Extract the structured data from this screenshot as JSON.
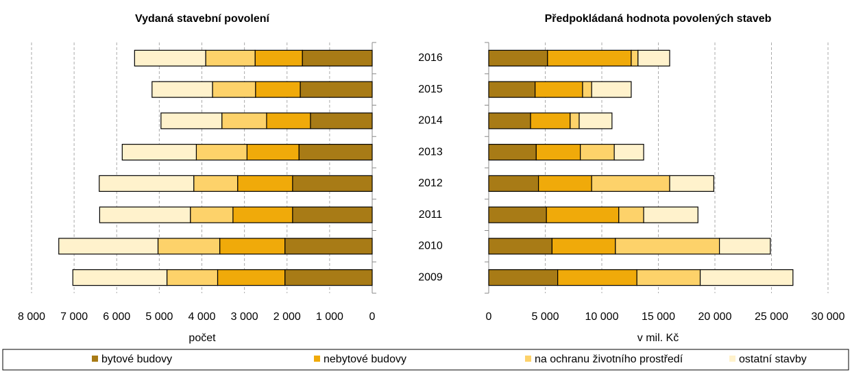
{
  "chart_data": [
    {
      "type": "stacked_barh",
      "title": "Vydaná stavební povolení",
      "xlabel": "počet",
      "categories": [
        "2016",
        "2015",
        "2014",
        "2013",
        "2012",
        "2011",
        "2010",
        "2009"
      ],
      "reversed": true,
      "grid": true,
      "xlim": [
        0,
        8000
      ],
      "xticks": [
        {
          "value": 8000,
          "label": "8 000"
        },
        {
          "value": 7000,
          "label": "7 000"
        },
        {
          "value": 6000,
          "label": "6 000"
        },
        {
          "value": 5000,
          "label": "5 000"
        },
        {
          "value": 4000,
          "label": "4 000"
        },
        {
          "value": 3000,
          "label": "3 000"
        },
        {
          "value": 2000,
          "label": "2 000"
        },
        {
          "value": 1000,
          "label": "1 000"
        },
        0
      ],
      "series": [
        {
          "name": "bytové budovy",
          "color": "#a87b16",
          "values": [
            1640,
            1690,
            1450,
            1720,
            1870,
            1870,
            2050,
            2050
          ]
        },
        {
          "name": "nebytové budovy",
          "color": "#f0aa0a",
          "values": [
            1110,
            1050,
            1030,
            1220,
            1290,
            1400,
            1530,
            1580
          ]
        },
        {
          "name": "na ochranu životního prostředí",
          "color": "#fdd26a",
          "values": [
            1160,
            1010,
            1050,
            1190,
            1030,
            1000,
            1450,
            1190
          ]
        },
        {
          "name": "ostatní stavby",
          "color": "#fff2cc",
          "values": [
            1670,
            1420,
            1430,
            1740,
            2220,
            2130,
            2330,
            2210
          ]
        }
      ]
    },
    {
      "type": "stacked_barh",
      "title": "Předpokládaná hodnota povolených staveb",
      "xlabel": "v mil. Kč",
      "reversed": false,
      "grid": true,
      "xlim": [
        0,
        30000
      ],
      "xticks": [
        0,
        {
          "value": 5000,
          "label": "5 000"
        },
        {
          "value": 10000,
          "label": "10 000"
        },
        {
          "value": 15000,
          "label": "15 000"
        },
        {
          "value": 20000,
          "label": "20 000"
        },
        {
          "value": 25000,
          "label": "25 000"
        },
        {
          "value": 30000,
          "label": "30 000"
        }
      ],
      "series": [
        {
          "color": "#a87b16",
          "values": [
            5200,
            4100,
            3700,
            4200,
            4400,
            5100,
            5600,
            6100
          ]
        },
        {
          "color": "#f0aa0a",
          "values": [
            7400,
            4200,
            3500,
            3900,
            4700,
            6400,
            5600,
            7000
          ]
        },
        {
          "color": "#fdd26a",
          "values": [
            600,
            800,
            800,
            3000,
            6900,
            2200,
            9200,
            5600
          ]
        },
        {
          "color": "#fff2cc",
          "values": [
            2800,
            3500,
            2900,
            2600,
            3900,
            4800,
            4500,
            8200
          ]
        }
      ]
    }
  ]
}
